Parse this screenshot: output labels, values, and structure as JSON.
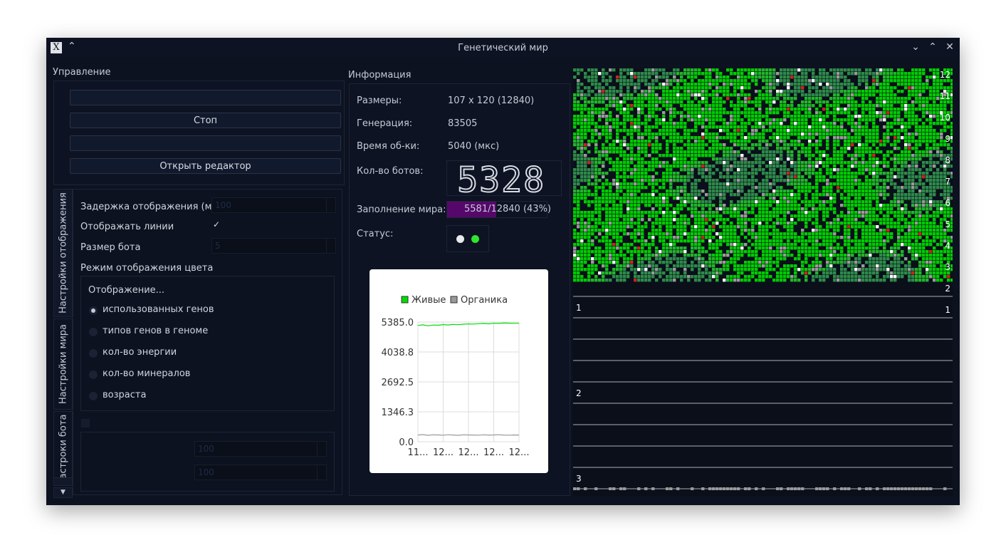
{
  "window": {
    "title": "Генетический мир",
    "app_icon": "x-app-icon",
    "keep_above_icon": "double-chevron-up-icon",
    "minimize_icon": "chevron-down-icon",
    "maximize_icon": "chevron-up-icon",
    "close_icon": "close-icon"
  },
  "control": {
    "section_label": "Управление",
    "buttons": [
      {
        "label": "",
        "enabled": false
      },
      {
        "label": "Стоп",
        "enabled": true
      },
      {
        "label": "",
        "enabled": false
      },
      {
        "label": "Открыть редактор",
        "enabled": true
      }
    ]
  },
  "tabs": [
    {
      "label": "Настройки отображения",
      "active": true
    },
    {
      "label": "Настройки мира",
      "active": false
    },
    {
      "label": "астроки бота",
      "active": false
    }
  ],
  "display_settings": {
    "delay_label": "Задержка отображения (мс)",
    "delay_value": "100",
    "show_lines_label": "Отображать линии",
    "show_lines_checked": true,
    "bot_size_label": "Размер бота",
    "bot_size_value": "5",
    "color_mode_label": "Режим отображения цвета",
    "color_group_title": "Отображение...",
    "color_options": [
      {
        "label": "использованных генов",
        "checked": true
      },
      {
        "label": "типов генов в геноме",
        "checked": false
      },
      {
        "label": "кол-во энергии",
        "checked": false
      },
      {
        "label": "кол-во минералов",
        "checked": false
      },
      {
        "label": "возраста",
        "checked": false
      }
    ],
    "disabled_field_1_value": "100",
    "disabled_field_2_value": "100"
  },
  "info": {
    "section_label": "Информация",
    "size_label": "Размеры:",
    "size_value": "107 x 120 (12840)",
    "generation_label": "Генерация:",
    "generation_value": "83505",
    "proc_time_label": "Время об-ки:",
    "proc_time_value": "5040 (мкс)",
    "bot_count_label": "Кол-во ботов:",
    "bot_count_value": "5328",
    "fill_label": "Заполнение мира:",
    "fill_text": "5581/12840 (43%)",
    "fill_fraction": 0.43,
    "status_label": "Статус:",
    "status_leds": [
      {
        "name": "led-white-icon",
        "color": "#e8e8ee"
      },
      {
        "name": "led-green-icon",
        "color": "#2ee62e"
      }
    ]
  },
  "chart_data": {
    "type": "line",
    "title": "",
    "legend": [
      {
        "name": "Живые",
        "color": "#00dd00"
      },
      {
        "name": "Органика",
        "color": "#999999"
      }
    ],
    "y_ticks": [
      "5385.0",
      "4038.8",
      "2692.5",
      "1346.3",
      "0.0"
    ],
    "x_ticks": [
      "11...",
      "12...",
      "12...",
      "12...",
      "12..."
    ],
    "ylim": [
      0,
      5385
    ],
    "series": [
      {
        "name": "Живые",
        "values": [
          5230,
          5260,
          5215,
          5250,
          5240,
          5270,
          5255,
          5280,
          5265,
          5290,
          5300,
          5295,
          5310,
          5320,
          5305,
          5330,
          5325,
          5340,
          5335,
          5330,
          5328
        ]
      },
      {
        "name": "Органика",
        "values": [
          300,
          320,
          290,
          310,
          305,
          295,
          315,
          300,
          290,
          310,
          305,
          300,
          295,
          310,
          300,
          305,
          315,
          300,
          295,
          305,
          300
        ]
      }
    ],
    "grid": true,
    "legend_position": "top"
  },
  "world_view": {
    "right_labels": [
      "12",
      "11",
      "10",
      "9",
      "8",
      "7",
      "6",
      "5",
      "4",
      "3",
      "2",
      "1"
    ],
    "left_labels": [
      "1",
      "2",
      "3"
    ],
    "alive_color": "#00cc00",
    "organic_color": "#9a9a9a",
    "background": "#0a0f1a"
  }
}
